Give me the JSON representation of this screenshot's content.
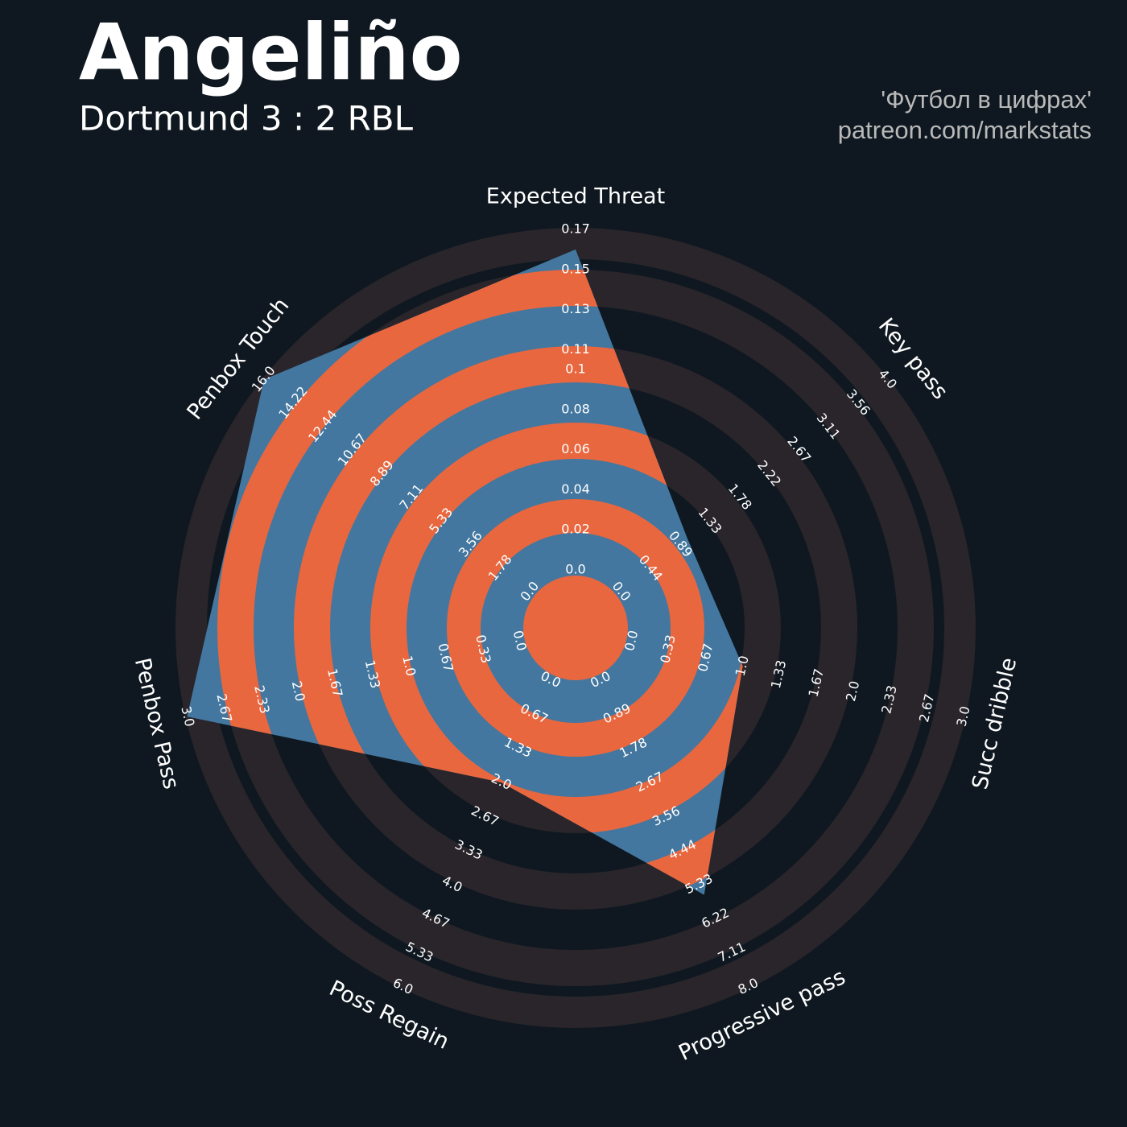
{
  "chart_data": {
    "type": "radar",
    "title": "Angeliño",
    "subtitle": "Dortmund 3 : 2 RBL",
    "credits": [
      "'Футбол в цифрах'",
      "patreon.com/markstats"
    ],
    "categories": [
      "Expected Threat",
      "Key pass",
      "Succ dribble",
      "Progressive pass",
      "Poss Regain",
      "Penbox Pass",
      "Penbox Touch"
    ],
    "values": [
      0.16,
      1,
      1,
      5.6,
      2,
      3,
      16
    ],
    "ranges": [
      [
        0,
        0.17
      ],
      [
        0,
        4
      ],
      [
        0,
        3
      ],
      [
        0,
        8
      ],
      [
        0,
        6
      ],
      [
        0,
        3
      ],
      [
        0,
        16
      ]
    ],
    "ticks": [
      [
        {
          "value": 0,
          "label": "0.0"
        },
        0.02,
        0.04,
        0.06,
        0.08,
        0.1,
        0.11,
        0.13,
        0.15,
        0.17
      ],
      [
        {
          "value": 0,
          "label": "0.0"
        },
        0.44,
        0.89,
        1.33,
        1.78,
        2.22,
        2.67,
        3.11,
        3.56,
        {
          "value": 4,
          "label": "4.0"
        }
      ],
      [
        {
          "value": 0,
          "label": "0.0"
        },
        0.33,
        0.67,
        {
          "value": 1,
          "label": "1.0"
        },
        1.33,
        1.67,
        {
          "value": 2,
          "label": "2.0"
        },
        2.33,
        2.67,
        {
          "value": 3,
          "label": "3.0"
        }
      ],
      [
        {
          "value": 0,
          "label": "0.0"
        },
        0.89,
        1.78,
        2.67,
        3.56,
        4.44,
        5.33,
        6.22,
        7.11,
        {
          "value": 8,
          "label": "8.0"
        }
      ],
      [
        {
          "value": 0,
          "label": "0.0"
        },
        0.67,
        1.33,
        {
          "value": 2,
          "label": "2.0"
        },
        2.67,
        3.33,
        {
          "value": 4,
          "label": "4.0"
        },
        4.67,
        5.33,
        {
          "value": 6,
          "label": "6.0"
        }
      ],
      [
        {
          "value": 0,
          "label": "0.0"
        },
        0.33,
        0.67,
        {
          "value": 1,
          "label": "1.0"
        },
        1.33,
        1.67,
        {
          "value": 2,
          "label": "2.0"
        },
        2.33,
        2.67,
        {
          "value": 3,
          "label": "3.0"
        }
      ],
      [
        {
          "value": 0,
          "label": "0.0"
        },
        1.78,
        3.56,
        5.33,
        7.11,
        8.89,
        10.67,
        12.44,
        14.22,
        {
          "value": 16,
          "label": "16.0"
        }
      ]
    ],
    "color": "#43779f",
    "ring_colors": [
      "#29252b",
      "#e8673f"
    ]
  }
}
